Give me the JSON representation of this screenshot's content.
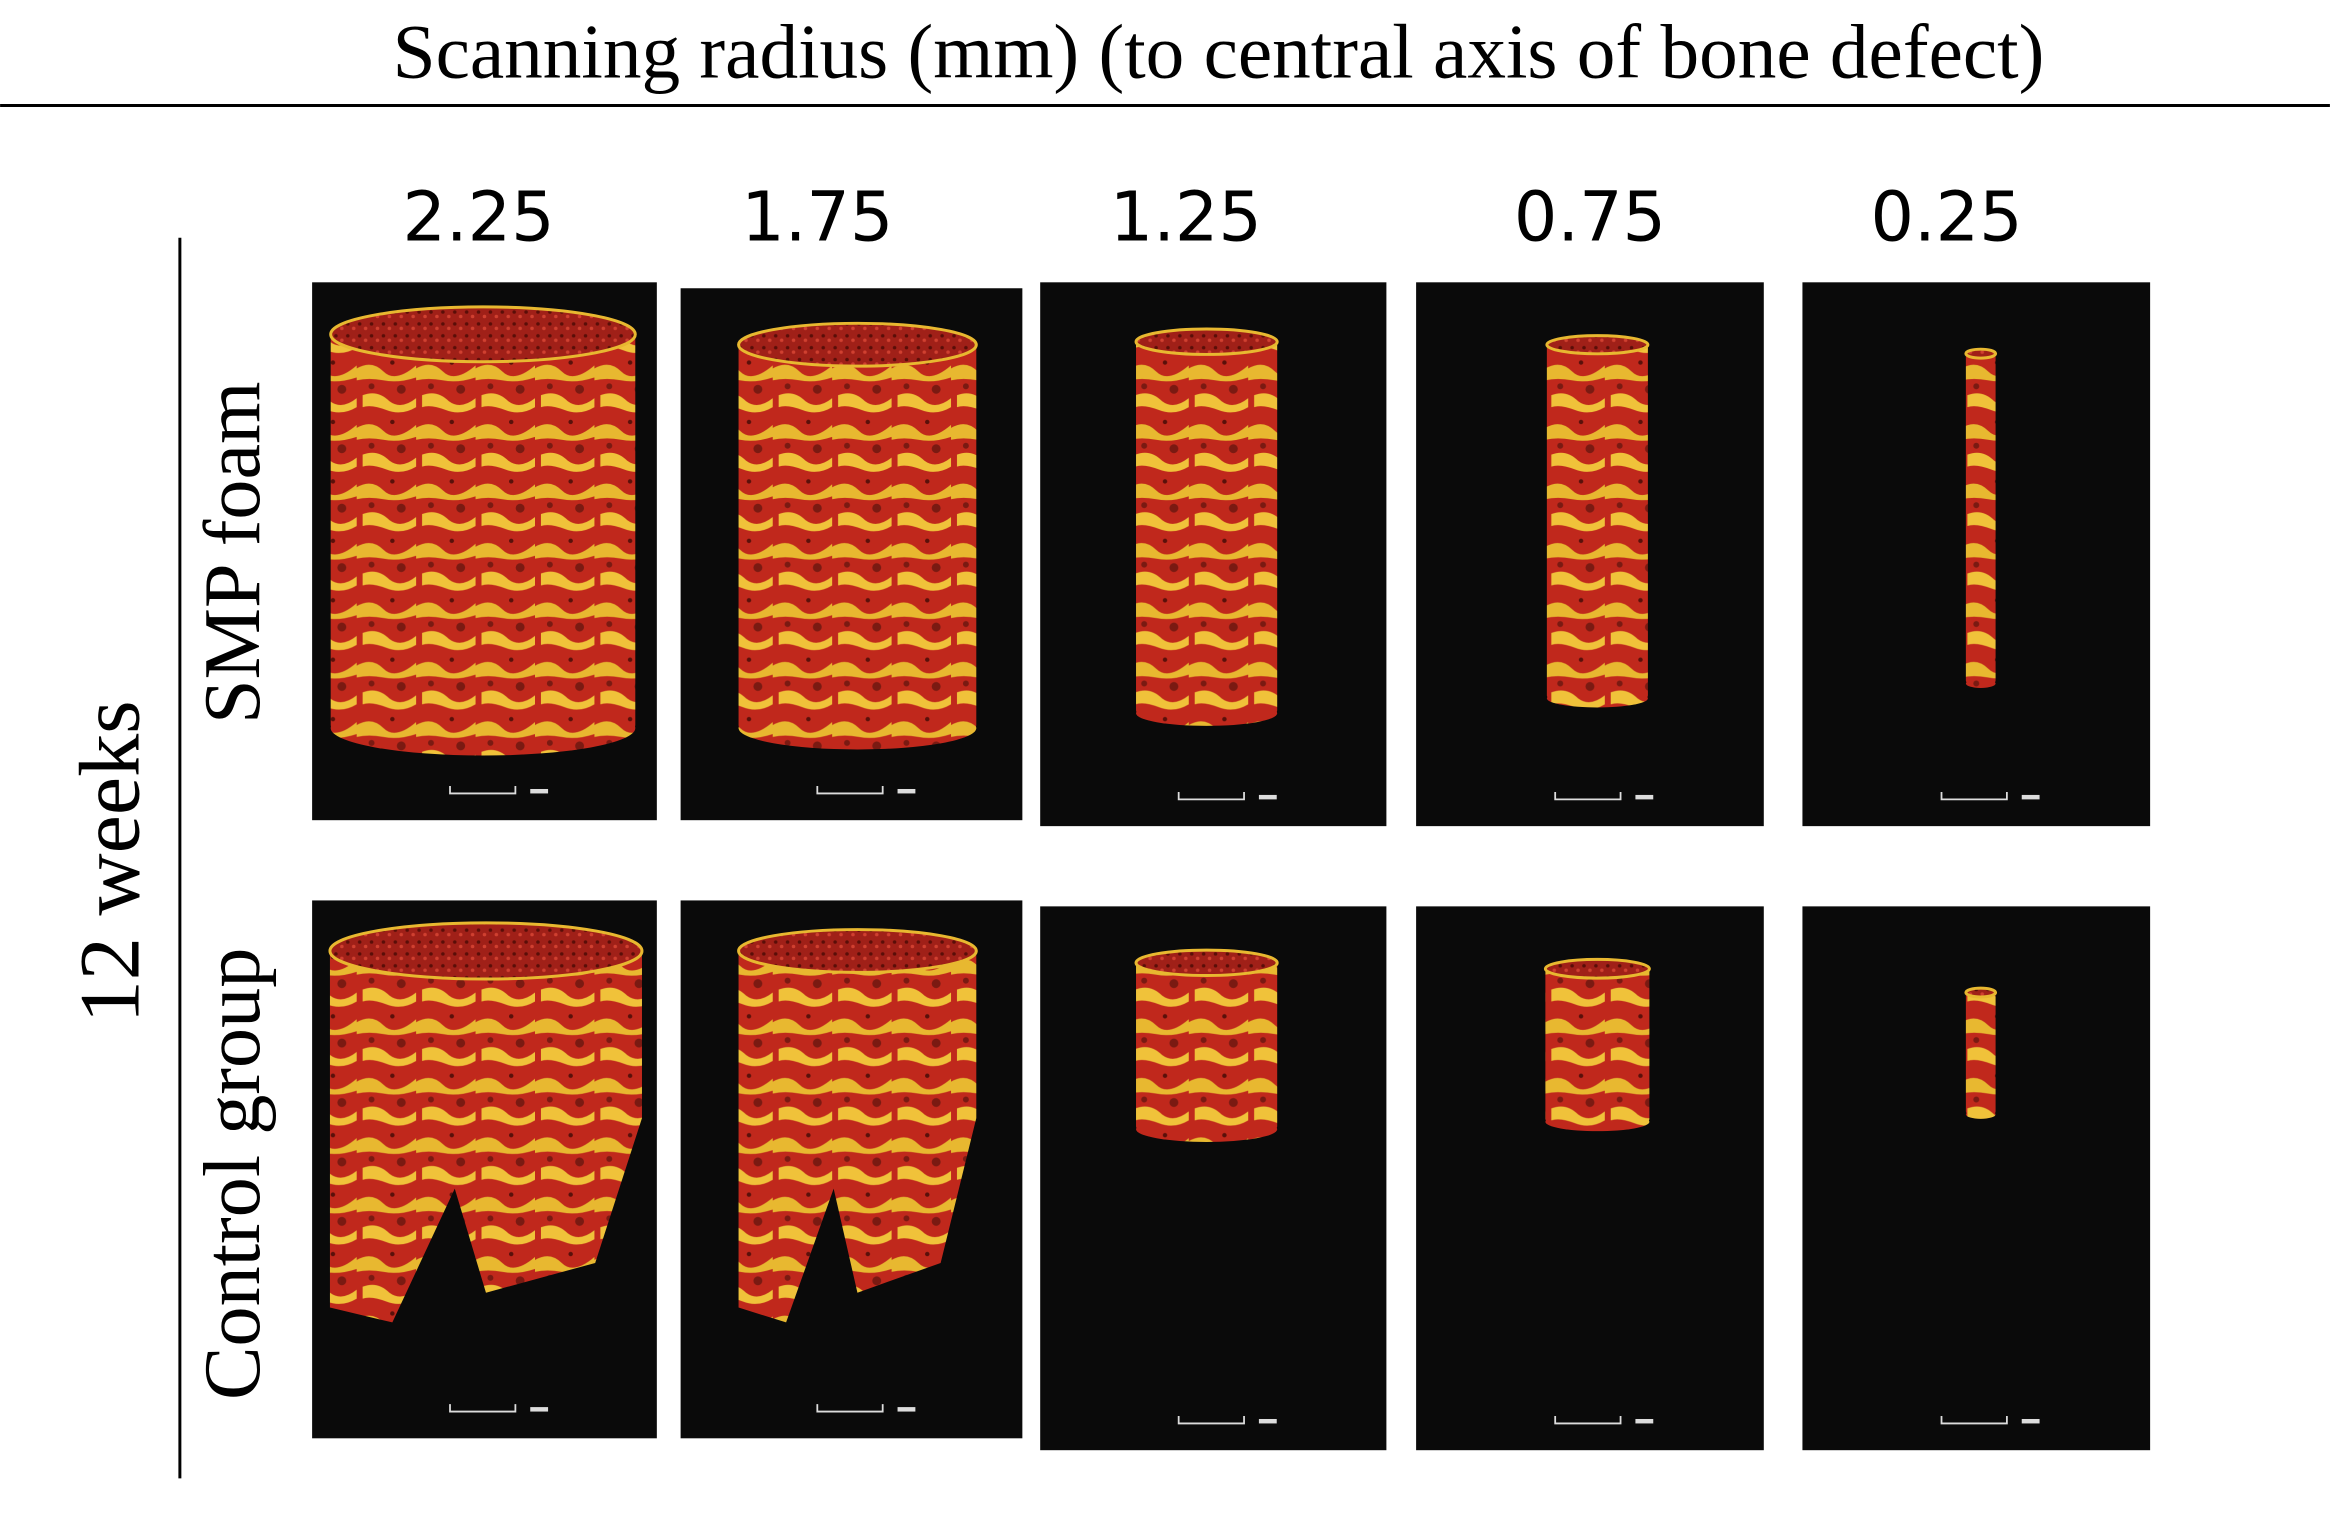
{
  "header": {
    "title": "Scanning radius (mm) (to central axis of bone defect)"
  },
  "columns": [
    "2.25",
    "1.75",
    "1.25",
    "0.75",
    "0.25"
  ],
  "group_label": "12 weeks",
  "rows": [
    "SMP foam",
    "Control group"
  ]
}
